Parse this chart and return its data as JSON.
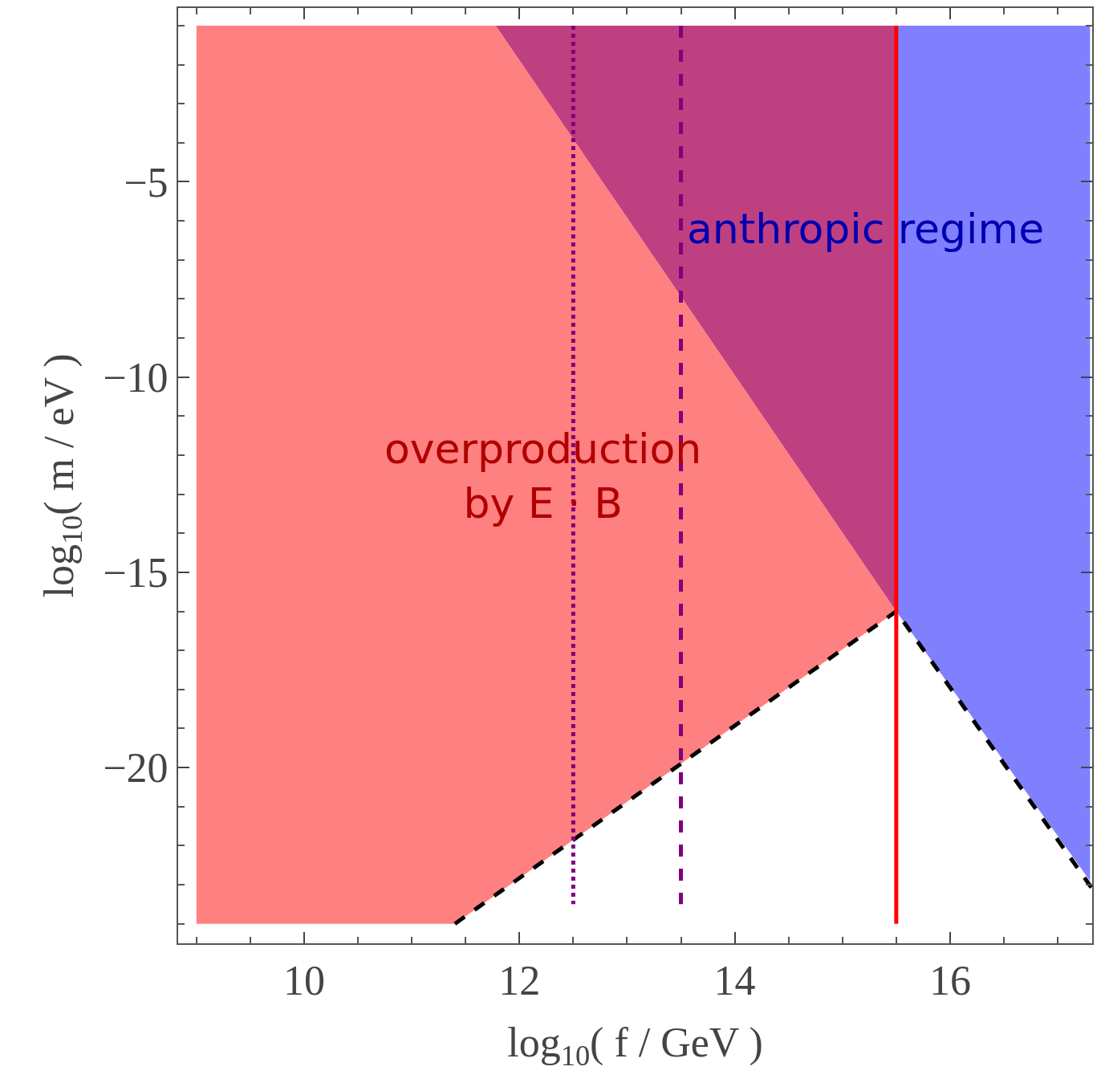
{
  "chart_data": {
    "type": "area",
    "xlabel": "log$_{10}$( f / GeV )",
    "ylabel": "log$_{10}$( m / eV )",
    "xlim": [
      8.83,
      17.32
    ],
    "ylim": [
      -24.5,
      -0.55
    ],
    "xticks": [
      10,
      12,
      14,
      16
    ],
    "yticks": [
      -5,
      -10,
      -15,
      -20
    ],
    "grid": false,
    "series": [
      {
        "color": "#ff8080",
        "x": [
          9,
          9,
          11.4,
          15.5,
          11.78
        ],
        "values": [
          -1,
          -24,
          -24,
          -16,
          -1
        ]
      },
      {
        "color": "#bf4080",
        "x": [
          11.78,
          15.5,
          15.5
        ],
        "values": [
          -1,
          -16,
          -1
        ]
      },
      {
        "color": "#8080ff",
        "x": [
          15.5,
          15.5,
          17.3,
          17.3
        ],
        "values": [
          -1,
          -16,
          -22.9,
          -1
        ]
      },
      {
        "type": "line",
        "color": "#000000",
        "line_style": "dashed",
        "x": [
          11.4,
          15.5,
          17.32
        ],
        "values": [
          -24,
          -16,
          -23.1
        ]
      },
      {
        "type": "line",
        "color": "#ff0000",
        "line_style": "solid",
        "x": [
          15.5,
          15.5
        ],
        "values": [
          -1,
          -24
        ]
      },
      {
        "type": "line",
        "color": "#800080",
        "line_style": "dotted",
        "x": [
          12.5,
          12.5
        ],
        "values": [
          -1,
          -23.5
        ]
      },
      {
        "type": "line",
        "color": "#800080",
        "line_style": "dashed",
        "x": [
          13.5,
          13.5
        ],
        "values": [
          -1,
          -23.5
        ]
      }
    ],
    "annotations": [
      "anthropic regime",
      "overproduction\nby E · B"
    ]
  }
}
